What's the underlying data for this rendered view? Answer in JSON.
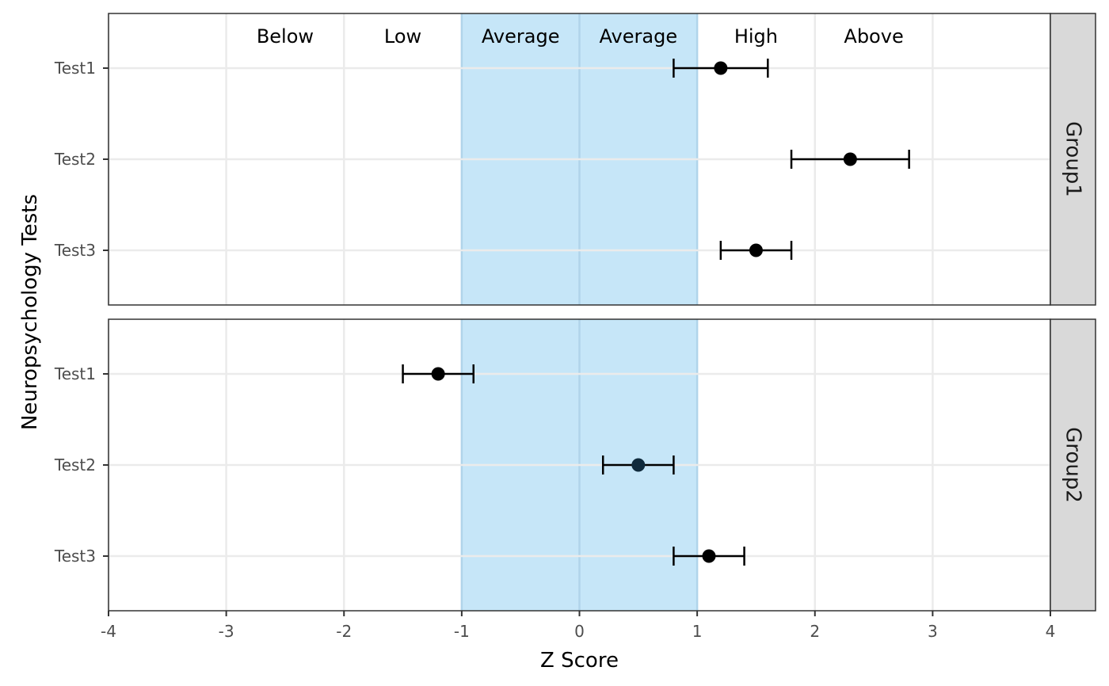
{
  "chart_data": {
    "type": "scatter",
    "subtype": "dot-and-whisker, faceted",
    "xlabel": "Z Score",
    "ylabel": "Neuropsychology Tests",
    "xlim": [
      -4,
      4
    ],
    "x_ticks": [
      -4,
      -3,
      -2,
      -1,
      0,
      1,
      2,
      3,
      4
    ],
    "tests": [
      "Test1",
      "Test2",
      "Test3"
    ],
    "grid": true,
    "average_band": {
      "x_range": [
        -1,
        1
      ],
      "color": "#c6e6f8",
      "border_color": "#b0d4ea"
    },
    "band_labels": [
      {
        "text": "Below",
        "x": -2.5
      },
      {
        "text": "Low",
        "x": -1.5
      },
      {
        "text": "Average",
        "x": -0.5
      },
      {
        "text": "Average",
        "x": 0.5
      },
      {
        "text": "High",
        "x": 1.5
      },
      {
        "text": "Above",
        "x": 2.5
      }
    ],
    "facets": [
      {
        "name": "Group1",
        "points": [
          {
            "test": "Test1",
            "z": 1.2,
            "lower": 0.8,
            "upper": 1.6
          },
          {
            "test": "Test2",
            "z": 2.3,
            "lower": 1.8,
            "upper": 2.8
          },
          {
            "test": "Test3",
            "z": 1.5,
            "lower": 1.2,
            "upper": 1.8
          }
        ]
      },
      {
        "name": "Group2",
        "points": [
          {
            "test": "Test1",
            "z": -1.2,
            "lower": -1.5,
            "upper": -0.9
          },
          {
            "test": "Test2",
            "z": 0.5,
            "lower": 0.2,
            "upper": 0.8
          },
          {
            "test": "Test3",
            "z": 1.1,
            "lower": 0.8,
            "upper": 1.4
          }
        ]
      }
    ],
    "colors": {
      "point": "#000000",
      "grid": "#ebebeb",
      "strip_fill": "#d9d9d9",
      "panel_border": "#333333"
    }
  }
}
